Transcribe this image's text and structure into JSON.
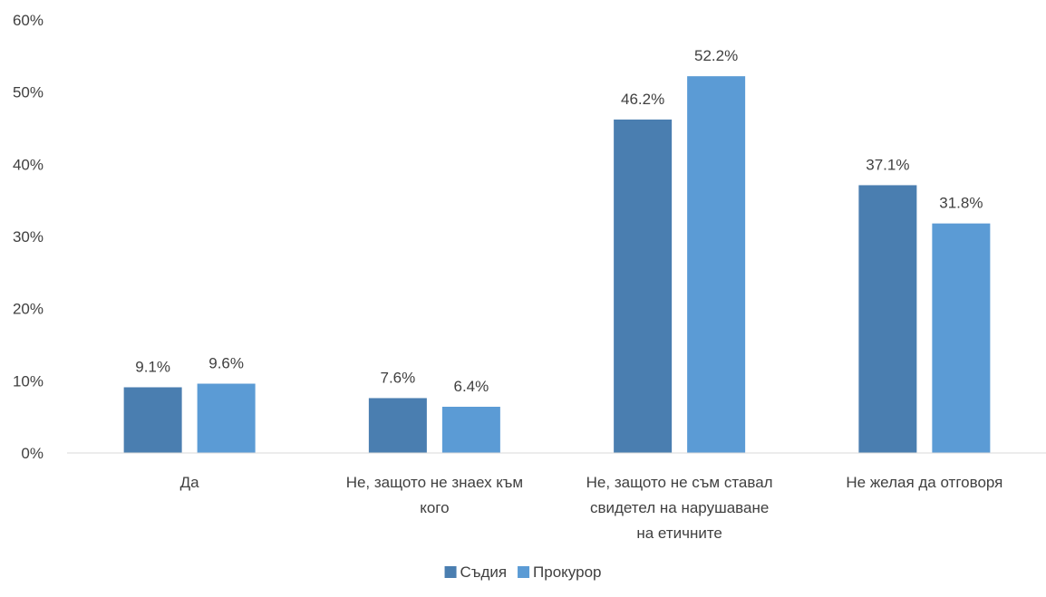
{
  "chart_data": {
    "type": "bar",
    "categories": [
      [
        "Да"
      ],
      [
        "Не, защото не знаех към",
        "кого"
      ],
      [
        "Не, защото не съм ставал",
        "свидетел на нарушаване",
        "на етичните"
      ],
      [
        "Не желая да отговоря"
      ]
    ],
    "series": [
      {
        "name": "Съдия",
        "values": [
          9.1,
          7.6,
          46.2,
          37.1
        ],
        "labels": [
          "9.1%",
          "7.6%",
          "46.2%",
          "37.1%"
        ],
        "color": "#4a7eb0"
      },
      {
        "name": "Прокурор",
        "values": [
          9.6,
          6.4,
          52.2,
          31.8
        ],
        "labels": [
          "9.6%",
          "6.4%",
          "52.2%",
          "31.8%"
        ],
        "color": "#5b9bd5"
      }
    ],
    "yticks": [
      "0%",
      "10%",
      "20%",
      "30%",
      "40%",
      "50%",
      "60%"
    ],
    "ylim": [
      0,
      60
    ],
    "grid": false,
    "legend": "bottom-center",
    "axis_color": "#d9d9d9"
  }
}
